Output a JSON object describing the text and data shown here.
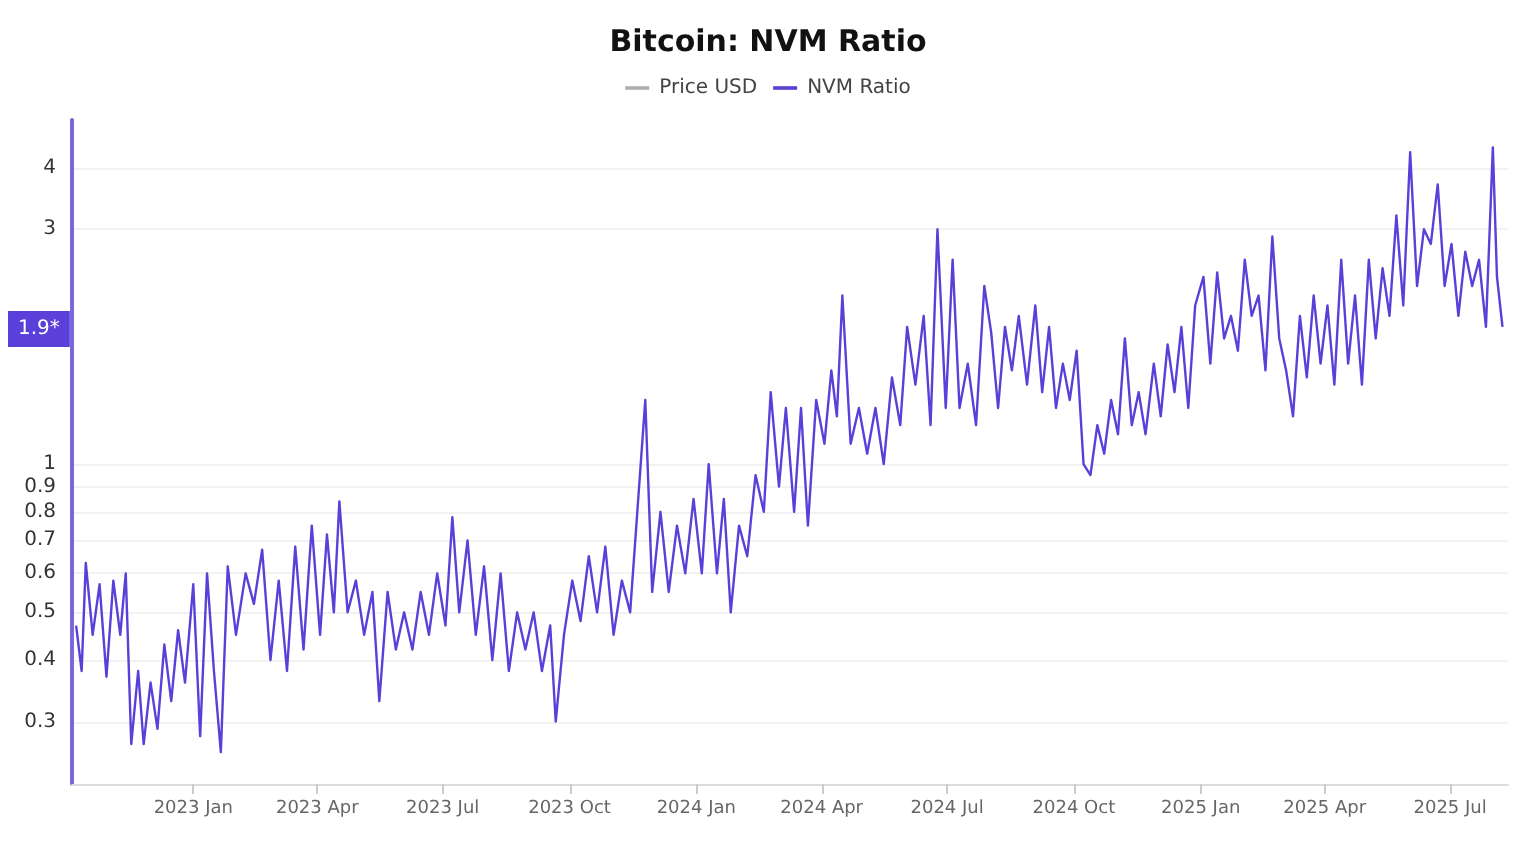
{
  "chart_data": {
    "type": "line",
    "title": "Bitcoin: NVM Ratio",
    "log": "y",
    "grid": "y",
    "legend": "top",
    "marker": "none",
    "xlim": [
      "2022-10-05",
      "2025-08-12"
    ],
    "xticks": [
      {
        "value": "2023-01-01",
        "label": "2023 Jan"
      },
      {
        "value": "2023-04-01",
        "label": "2023 Apr"
      },
      {
        "value": "2023-07-01",
        "label": "2023 Jul"
      },
      {
        "value": "2023-10-01",
        "label": "2023 Oct"
      },
      {
        "value": "2024-01-01",
        "label": "2024 Jan"
      },
      {
        "value": "2024-04-01",
        "label": "2024 Apr"
      },
      {
        "value": "2024-07-01",
        "label": "2024 Jul"
      },
      {
        "value": "2024-10-01",
        "label": "2024 Oct"
      },
      {
        "value": "2025-01-01",
        "label": "2025 Jan"
      },
      {
        "value": "2025-04-01",
        "label": "2025 Apr"
      },
      {
        "value": "2025-07-01",
        "label": "2025 Jul"
      }
    ],
    "ylim": [
      0.224,
      5
    ],
    "yticks": [
      0.3,
      0.4,
      0.5,
      0.6,
      0.7,
      0.8,
      0.9,
      1,
      3,
      4
    ],
    "annotations": [
      {
        "text": "1.9*",
        "y": 1.9
      }
    ],
    "x": [
      "2022-10-08",
      "2022-10-12",
      "2022-10-15",
      "2022-10-20",
      "2022-10-25",
      "2022-10-30",
      "2022-11-04",
      "2022-11-09",
      "2022-11-13",
      "2022-11-17",
      "2022-11-22",
      "2022-11-26",
      "2022-12-01",
      "2022-12-06",
      "2022-12-11",
      "2022-12-16",
      "2022-12-21",
      "2022-12-26",
      "2023-01-01",
      "2023-01-06",
      "2023-01-11",
      "2023-01-16",
      "2023-01-21",
      "2023-01-26",
      "2023-02-01",
      "2023-02-08",
      "2023-02-14",
      "2023-02-20",
      "2023-02-26",
      "2023-03-04",
      "2023-03-10",
      "2023-03-16",
      "2023-03-22",
      "2023-03-28",
      "2023-04-03",
      "2023-04-08",
      "2023-04-13",
      "2023-04-17",
      "2023-04-23",
      "2023-04-29",
      "2023-05-05",
      "2023-05-11",
      "2023-05-16",
      "2023-05-22",
      "2023-05-28",
      "2023-06-03",
      "2023-06-09",
      "2023-06-15",
      "2023-06-21",
      "2023-06-27",
      "2023-07-03",
      "2023-07-08",
      "2023-07-13",
      "2023-07-19",
      "2023-07-25",
      "2023-07-31",
      "2023-08-06",
      "2023-08-12",
      "2023-08-18",
      "2023-08-24",
      "2023-08-30",
      "2023-09-05",
      "2023-09-11",
      "2023-09-17",
      "2023-09-21",
      "2023-09-27",
      "2023-10-03",
      "2023-10-09",
      "2023-10-15",
      "2023-10-21",
      "2023-10-27",
      "2023-11-02",
      "2023-11-08",
      "2023-11-14",
      "2023-11-25",
      "2023-11-30",
      "2023-12-06",
      "2023-12-12",
      "2023-12-18",
      "2023-12-24",
      "2023-12-30",
      "2024-01-05",
      "2024-01-10",
      "2024-01-16",
      "2024-01-21",
      "2024-01-26",
      "2024-02-01",
      "2024-02-07",
      "2024-02-13",
      "2024-02-19",
      "2024-02-24",
      "2024-03-01",
      "2024-03-06",
      "2024-03-12",
      "2024-03-17",
      "2024-03-22",
      "2024-03-28",
      "2024-04-03",
      "2024-04-08",
      "2024-04-12",
      "2024-04-16",
      "2024-04-22",
      "2024-04-28",
      "2024-05-04",
      "2024-05-10",
      "2024-05-16",
      "2024-05-22",
      "2024-05-28",
      "2024-06-02",
      "2024-06-08",
      "2024-06-14",
      "2024-06-19",
      "2024-06-24",
      "2024-06-30",
      "2024-07-05",
      "2024-07-10",
      "2024-07-16",
      "2024-07-22",
      "2024-07-28",
      "2024-08-02",
      "2024-08-07",
      "2024-08-12",
      "2024-08-17",
      "2024-08-22",
      "2024-08-28",
      "2024-09-03",
      "2024-09-08",
      "2024-09-13",
      "2024-09-18",
      "2024-09-23",
      "2024-09-28",
      "2024-10-03",
      "2024-10-08",
      "2024-10-13",
      "2024-10-18",
      "2024-10-23",
      "2024-10-28",
      "2024-11-02",
      "2024-11-07",
      "2024-11-12",
      "2024-11-17",
      "2024-11-22",
      "2024-11-28",
      "2024-12-03",
      "2024-12-08",
      "2024-12-13",
      "2024-12-18",
      "2024-12-23",
      "2024-12-28",
      "2025-01-03",
      "2025-01-08",
      "2025-01-13",
      "2025-01-18",
      "2025-01-23",
      "2025-01-28",
      "2025-02-02",
      "2025-02-07",
      "2025-02-12",
      "2025-02-17",
      "2025-02-22",
      "2025-02-27",
      "2025-03-04",
      "2025-03-09",
      "2025-03-14",
      "2025-03-19",
      "2025-03-24",
      "2025-03-29",
      "2025-04-03",
      "2025-04-08",
      "2025-04-13",
      "2025-04-18",
      "2025-04-23",
      "2025-04-28",
      "2025-05-03",
      "2025-05-08",
      "2025-05-13",
      "2025-05-18",
      "2025-05-23",
      "2025-05-28",
      "2025-06-02",
      "2025-06-07",
      "2025-06-12",
      "2025-06-17",
      "2025-06-22",
      "2025-06-27",
      "2025-07-02",
      "2025-07-07",
      "2025-07-12",
      "2025-07-17",
      "2025-07-22",
      "2025-07-27",
      "2025-08-01",
      "2025-08-04",
      "2025-08-08"
    ],
    "series": [
      {
        "name": "Price USD",
        "color": "#b0b0b0",
        "values": [
          null,
          null,
          null,
          null,
          null,
          null,
          null,
          null,
          null,
          null,
          null,
          null,
          null,
          null,
          null,
          null,
          null,
          null,
          null,
          null,
          null,
          null,
          null,
          null,
          null,
          null,
          null,
          null,
          null,
          null,
          null,
          null,
          null,
          null,
          null,
          null,
          null,
          null,
          null,
          null,
          null,
          null,
          null,
          null,
          null,
          null,
          null,
          null,
          null,
          null,
          null,
          null,
          null,
          null,
          null,
          null,
          null,
          null,
          null,
          null,
          null,
          null,
          null,
          null,
          null,
          null,
          null,
          null,
          null,
          null,
          null,
          null,
          null,
          null,
          null,
          null,
          null,
          null,
          null,
          null,
          null,
          null,
          null,
          null,
          null,
          null,
          null,
          null,
          null,
          null,
          null,
          null,
          null,
          null,
          null,
          null,
          null,
          null,
          null,
          null,
          null,
          null,
          null,
          null,
          null,
          null,
          null,
          null,
          null,
          null,
          null,
          null,
          null,
          null,
          null,
          null,
          null,
          null,
          null,
          null,
          null,
          null,
          null,
          null,
          null,
          null,
          null,
          null,
          null,
          null,
          null,
          null,
          null,
          null,
          null,
          null,
          null,
          null,
          null,
          null,
          null,
          null,
          null,
          null,
          null,
          null,
          null,
          null,
          null,
          null,
          null,
          null,
          null,
          null,
          null,
          null,
          null,
          null,
          null,
          null,
          null,
          null,
          null,
          null,
          null,
          null,
          null,
          null,
          null,
          null,
          null,
          null,
          null,
          null,
          null,
          null,
          null,
          null,
          null,
          null,
          null,
          null,
          null,
          null,
          null,
          null,
          null,
          null,
          null,
          null,
          null,
          null,
          null,
          null
        ]
      },
      {
        "name": "NVM Ratio",
        "color": "#5b3fd9",
        "values": [
          0.47,
          0.38,
          0.63,
          0.45,
          0.57,
          0.37,
          0.58,
          0.45,
          0.6,
          0.27,
          0.38,
          0.27,
          0.36,
          0.29,
          0.43,
          0.33,
          0.46,
          0.36,
          0.57,
          0.28,
          0.6,
          0.38,
          0.26,
          0.62,
          0.45,
          0.6,
          0.52,
          0.67,
          0.4,
          0.58,
          0.38,
          0.68,
          0.42,
          0.75,
          0.45,
          0.72,
          0.5,
          0.84,
          0.5,
          0.58,
          0.45,
          0.55,
          0.33,
          0.55,
          0.42,
          0.5,
          0.42,
          0.55,
          0.45,
          0.6,
          0.47,
          0.78,
          0.5,
          0.7,
          0.45,
          0.62,
          0.4,
          0.6,
          0.38,
          0.5,
          0.42,
          0.5,
          0.38,
          0.47,
          0.3,
          0.45,
          0.58,
          0.48,
          0.65,
          0.5,
          0.68,
          0.45,
          0.58,
          0.5,
          1.35,
          0.55,
          0.8,
          0.55,
          0.75,
          0.6,
          0.85,
          0.6,
          1.0,
          0.6,
          0.85,
          0.5,
          0.75,
          0.65,
          0.95,
          0.8,
          1.4,
          0.9,
          1.3,
          0.8,
          1.3,
          0.75,
          1.35,
          1.1,
          1.55,
          1.25,
          2.2,
          1.1,
          1.3,
          1.05,
          1.3,
          1.0,
          1.5,
          1.2,
          1.9,
          1.45,
          2.0,
          1.2,
          3.0,
          1.3,
          2.6,
          1.3,
          1.6,
          1.2,
          2.3,
          1.85,
          1.3,
          1.9,
          1.55,
          2.0,
          1.45,
          2.1,
          1.4,
          1.9,
          1.3,
          1.6,
          1.35,
          1.7,
          1.0,
          0.95,
          1.2,
          1.05,
          1.35,
          1.15,
          1.8,
          1.2,
          1.4,
          1.15,
          1.6,
          1.25,
          1.75,
          1.4,
          1.9,
          1.3,
          2.1,
          2.4,
          1.6,
          2.45,
          1.8,
          2.0,
          1.7,
          2.6,
          2.0,
          2.2,
          1.55,
          2.9,
          1.8,
          1.55,
          1.25,
          2.0,
          1.5,
          2.2,
          1.6,
          2.1,
          1.45,
          2.6,
          1.6,
          2.2,
          1.45,
          2.6,
          1.8,
          2.5,
          2.0,
          3.2,
          2.1,
          4.3,
          2.3,
          3.0,
          2.8,
          3.7,
          2.3,
          2.8,
          2.0,
          2.7,
          2.3,
          2.6,
          1.9,
          4.4,
          2.4,
          1.9
        ]
      }
    ]
  }
}
